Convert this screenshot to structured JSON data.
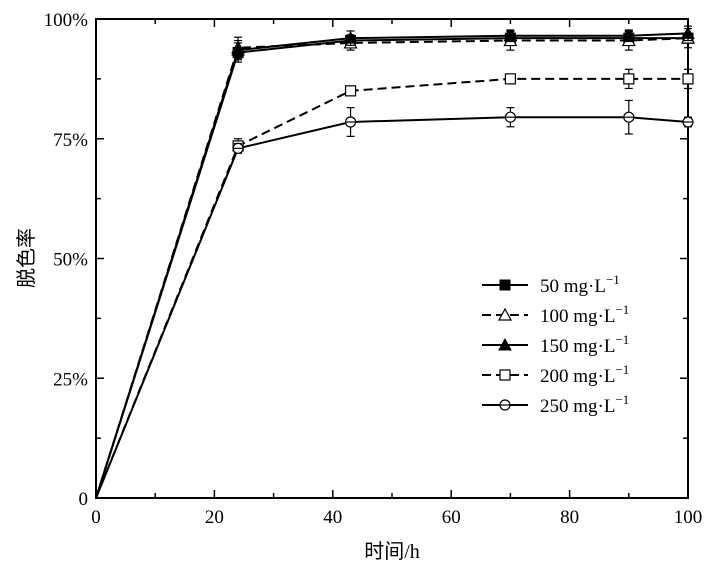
{
  "chart_data": {
    "type": "line",
    "title": "",
    "xlabel": "时间/h",
    "ylabel": "脱色率",
    "xlim": [
      0,
      100
    ],
    "ylim": [
      0,
      100
    ],
    "xticks": [
      0,
      20,
      40,
      60,
      80,
      100
    ],
    "xtick_labels": [
      "0",
      "20",
      "40",
      "60",
      "80",
      "100"
    ],
    "yticks": [
      0,
      25,
      50,
      75,
      100
    ],
    "ytick_labels": [
      "0",
      "25%",
      "50%",
      "75%",
      "100%"
    ],
    "grid": false,
    "legend_position": "center-right",
    "series": [
      {
        "name": "50 mg·L",
        "superscript": "−1",
        "marker": "filled-square",
        "dash": "solid",
        "points": [
          {
            "x": 0,
            "y": 0,
            "err": 0
          },
          {
            "x": 24,
            "y": 93,
            "err": 2
          },
          {
            "x": 43,
            "y": 95.5,
            "err": 1.2
          },
          {
            "x": 70,
            "y": 96,
            "err": 1.3
          },
          {
            "x": 90,
            "y": 96,
            "err": 1.3
          },
          {
            "x": 100,
            "y": 96,
            "err": 1
          }
        ]
      },
      {
        "name": "100 mg·L",
        "superscript": "−1",
        "marker": "open-triangle",
        "dash": "dashed",
        "points": [
          {
            "x": 0,
            "y": 0,
            "err": 0
          },
          {
            "x": 24,
            "y": 94,
            "err": 2.2
          },
          {
            "x": 43,
            "y": 95,
            "err": 1.5
          },
          {
            "x": 70,
            "y": 95.5,
            "err": 2
          },
          {
            "x": 90,
            "y": 95.5,
            "err": 2
          },
          {
            "x": 100,
            "y": 96,
            "err": 2
          }
        ]
      },
      {
        "name": "150 mg·L",
        "superscript": "−1",
        "marker": "filled-triangle",
        "dash": "solid",
        "points": [
          {
            "x": 0,
            "y": 0,
            "err": 0
          },
          {
            "x": 24,
            "y": 93.5,
            "err": 2
          },
          {
            "x": 43,
            "y": 96,
            "err": 1.5
          },
          {
            "x": 70,
            "y": 96.5,
            "err": 1.2
          },
          {
            "x": 90,
            "y": 96.5,
            "err": 1.2
          },
          {
            "x": 100,
            "y": 97,
            "err": 1.5
          }
        ]
      },
      {
        "name": "200 mg·L",
        "superscript": "−1",
        "marker": "open-square",
        "dash": "dashed",
        "points": [
          {
            "x": 0,
            "y": 0,
            "err": 0
          },
          {
            "x": 24,
            "y": 73.5,
            "err": 1.5
          },
          {
            "x": 43,
            "y": 85,
            "err": 1
          },
          {
            "x": 70,
            "y": 87.5,
            "err": 1
          },
          {
            "x": 90,
            "y": 87.5,
            "err": 2
          },
          {
            "x": 100,
            "y": 87.5,
            "err": 2
          }
        ]
      },
      {
        "name": "250 mg·L",
        "superscript": "−1",
        "marker": "open-circle-cross",
        "dash": "solid",
        "points": [
          {
            "x": 0,
            "y": 0,
            "err": 0
          },
          {
            "x": 24,
            "y": 73,
            "err": 1
          },
          {
            "x": 43,
            "y": 78.5,
            "err": 3
          },
          {
            "x": 70,
            "y": 79.5,
            "err": 2
          },
          {
            "x": 90,
            "y": 79.5,
            "err": 3.5
          },
          {
            "x": 100,
            "y": 78.5,
            "err": 1
          }
        ]
      }
    ]
  }
}
